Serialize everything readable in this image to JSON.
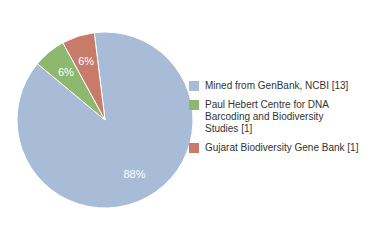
{
  "chart_data": {
    "type": "pie",
    "categories": [
      "Mined from GenBank, NCBI [13]",
      "Paul Hebert Centre for DNA\nBarcoding and Biodiversity\nStudies [1]",
      "Gujarat Biodiversity Gene Bank [1]"
    ],
    "values": [
      88,
      6,
      6
    ],
    "value_labels": [
      "88%",
      "6%",
      "6%"
    ],
    "colors": [
      "#a8bcd8",
      "#8db86e",
      "#c97b6a"
    ],
    "data_labels": true,
    "legend": "right"
  }
}
